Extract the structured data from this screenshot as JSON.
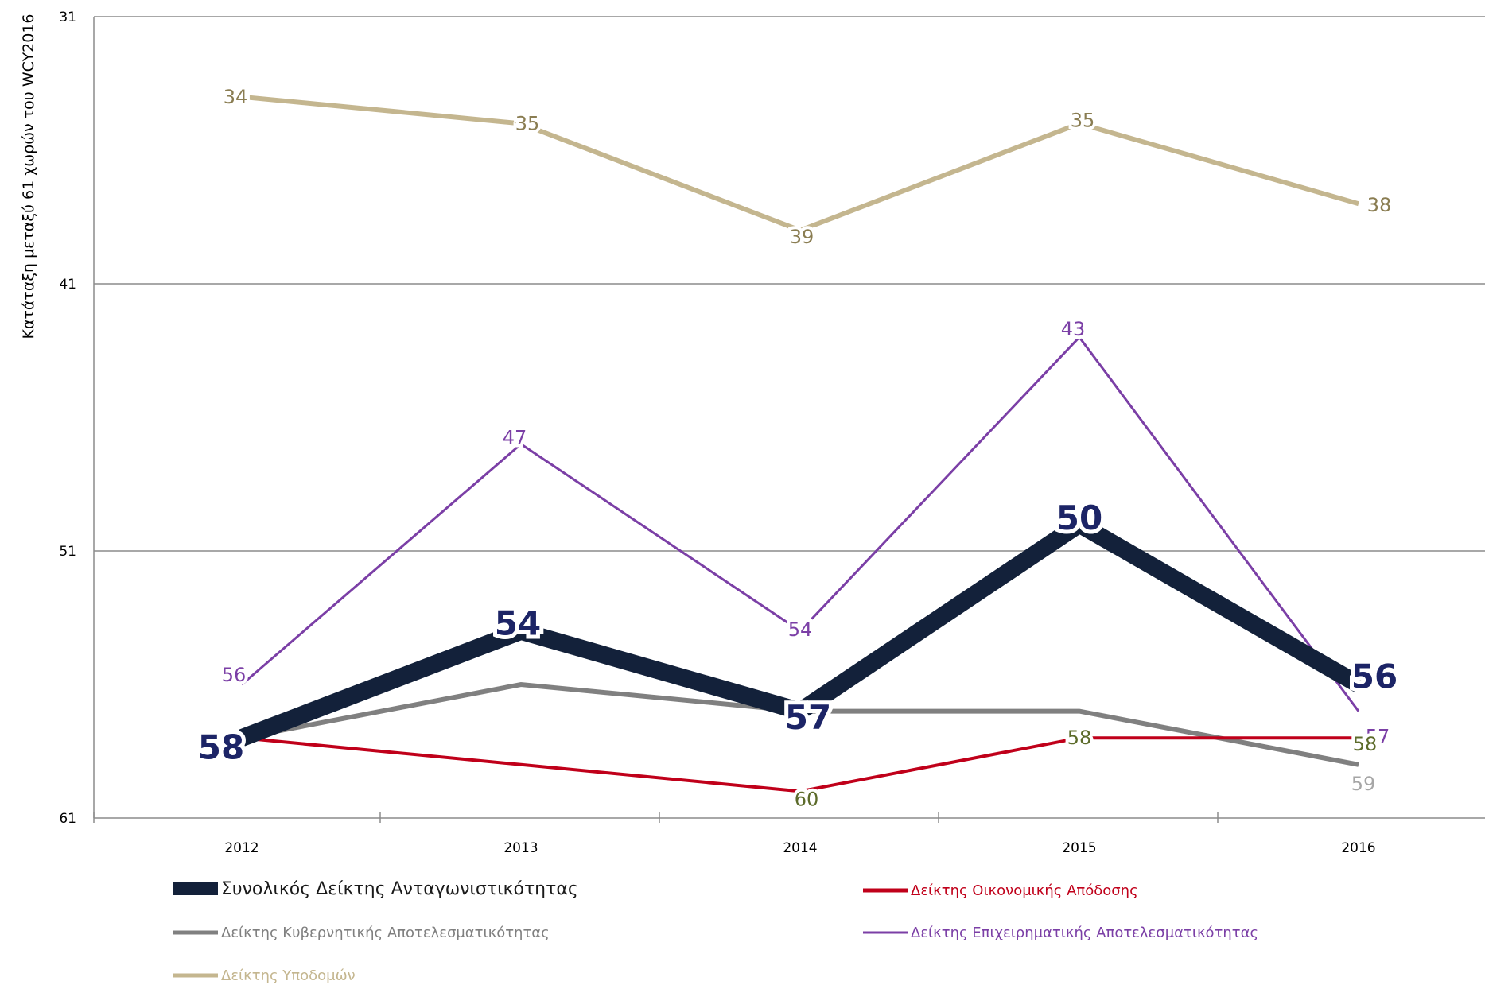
{
  "chart_data": {
    "type": "line",
    "title": "",
    "ylabel": "Κατάταξη μεταξύ 61 χωρών του WCY2016",
    "xlabel": "",
    "categories": [
      "2012",
      "2013",
      "2014",
      "2015",
      "2016"
    ],
    "y_axis": {
      "min": 31,
      "max": 61,
      "inverted": true,
      "ticks": [
        31,
        41,
        51,
        61
      ]
    },
    "grid": true,
    "legend_position": "bottom",
    "series": [
      {
        "name": "Δείκτης Υποδομών",
        "values": [
          34,
          35,
          39,
          35,
          38
        ],
        "color": "#c4b68f",
        "label_color": "#8a7d52"
      },
      {
        "name": "Δείκτης Επιχειρηματικής Αποτελεσματικότητας",
        "values": [
          56,
          47,
          54,
          43,
          57
        ],
        "color": "#7b3fa6",
        "label_color": "#7b3fa6"
      },
      {
        "name": "Δείκτης Κυβερνητικής Αποτελεσματικότητας",
        "values": [
          58,
          56,
          57,
          57,
          59
        ],
        "color": "#808080",
        "label_color": "#a6a6a6",
        "labels": [
          "",
          "",
          "",
          "",
          "59"
        ]
      },
      {
        "name": "Δείκτης Οικονομικής Απόδοσης",
        "values": [
          58,
          59,
          60,
          58,
          58
        ],
        "color": "#c0001a",
        "label_color": "#5c6b2a",
        "labels": [
          "",
          "",
          "60",
          "58",
          "58"
        ]
      },
      {
        "name": "Συνολικός Δείκτης Ανταγωνιστικότητας",
        "values": [
          58,
          54,
          57,
          50,
          56
        ],
        "color": "#13213a",
        "label_color": "#1c2466"
      }
    ]
  }
}
